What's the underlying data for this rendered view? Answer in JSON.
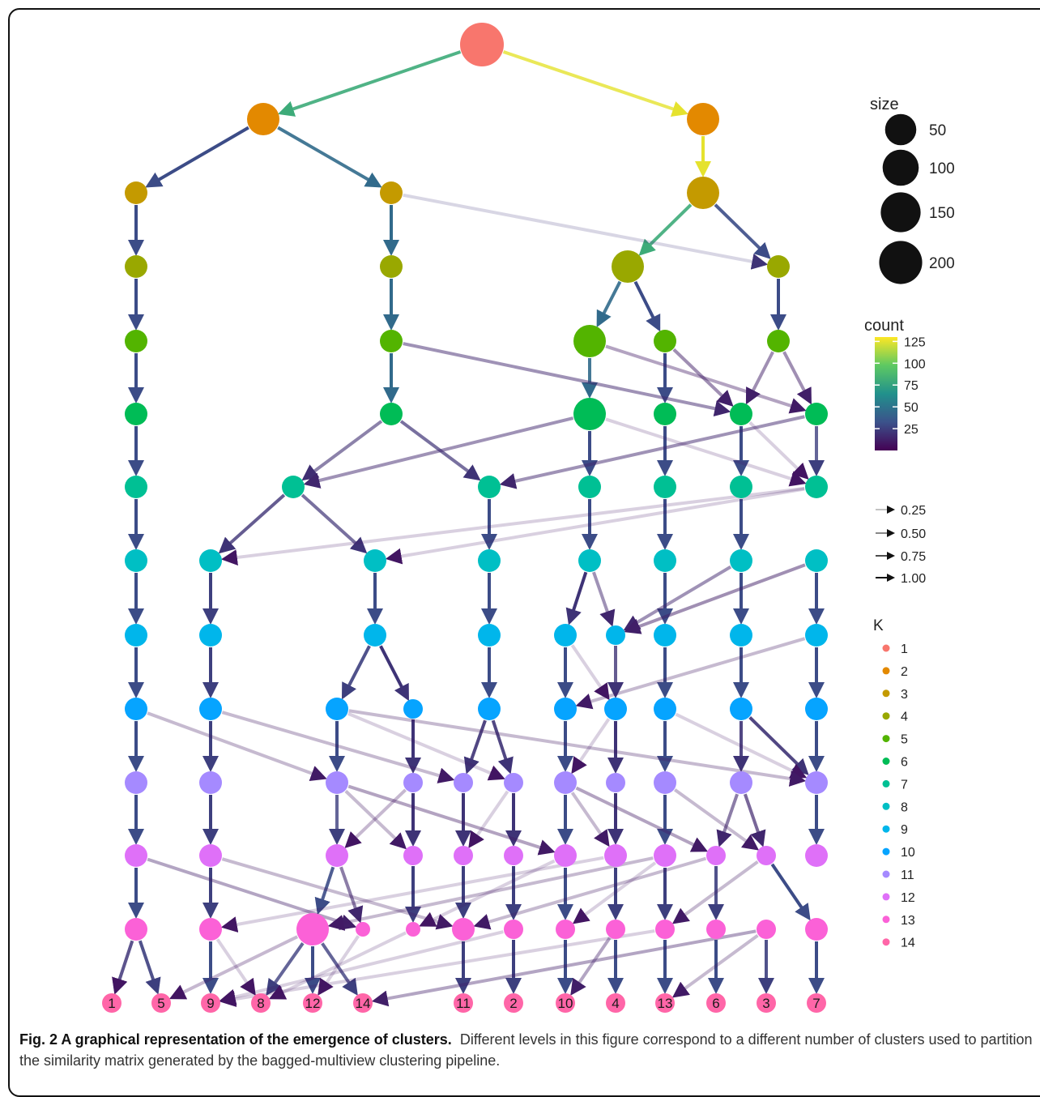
{
  "caption": {
    "bold": "Fig. 2 A graphical representation of the emergence of clusters.",
    "text": "Different levels in this figure correspond to a different number of clusters used to partition the similarity matrix generated by the bagged-multiview clustering pipeline."
  },
  "legend": {
    "size_title": "size",
    "size_items": [
      {
        "label": "50",
        "value": 50
      },
      {
        "label": "100",
        "value": 100
      },
      {
        "label": "150",
        "value": 150
      },
      {
        "label": "200",
        "value": 200
      }
    ],
    "count_title": "count",
    "count_ticks": [
      {
        "label": "125",
        "value": 125
      },
      {
        "label": "100",
        "value": 100
      },
      {
        "label": "75",
        "value": 75
      },
      {
        "label": "50",
        "value": 50
      },
      {
        "label": "25",
        "value": 25
      }
    ],
    "count_range": [
      0,
      130
    ],
    "arrow_items": [
      {
        "label": "0.25",
        "value": 0.25
      },
      {
        "label": "0.50",
        "value": 0.5
      },
      {
        "label": "0.75",
        "value": 0.75
      },
      {
        "label": "1.00",
        "value": 1.0
      }
    ],
    "k_title": "K",
    "k_items": [
      {
        "label": "1",
        "color": "#f8766d"
      },
      {
        "label": "2",
        "color": "#e38900"
      },
      {
        "label": "3",
        "color": "#c49a00"
      },
      {
        "label": "4",
        "color": "#99a800"
      },
      {
        "label": "5",
        "color": "#53b400"
      },
      {
        "label": "6",
        "color": "#00bc56"
      },
      {
        "label": "7",
        "color": "#00c094"
      },
      {
        "label": "8",
        "color": "#00bfc4"
      },
      {
        "label": "9",
        "color": "#00b6eb"
      },
      {
        "label": "10",
        "color": "#06a4ff"
      },
      {
        "label": "11",
        "color": "#a58aff"
      },
      {
        "label": "12",
        "color": "#df70f8"
      },
      {
        "label": "13",
        "color": "#fb61d7"
      },
      {
        "label": "14",
        "color": "#ff66a8"
      }
    ]
  },
  "leaf_labels": [
    "1",
    "5",
    "9",
    "8",
    "12",
    "14",
    "11",
    "2",
    "10",
    "4",
    "13",
    "6",
    "3",
    "7"
  ],
  "nodes": [
    [
      [
        595,
        55,
        "L"
      ]
    ],
    [
      [
        325,
        147,
        "m"
      ],
      [
        868,
        147,
        "m"
      ]
    ],
    [
      [
        168,
        238,
        "s"
      ],
      [
        483,
        238,
        "s"
      ],
      [
        868,
        238,
        "m"
      ]
    ],
    [
      [
        168,
        329,
        "s"
      ],
      [
        483,
        329,
        "s"
      ],
      [
        775,
        329,
        "m"
      ],
      [
        961,
        329,
        "s"
      ]
    ],
    [
      [
        168,
        421,
        "s"
      ],
      [
        483,
        421,
        "s"
      ],
      [
        728,
        421,
        "m"
      ],
      [
        821,
        421,
        "s"
      ],
      [
        961,
        421,
        "s"
      ]
    ],
    [
      [
        168,
        511,
        "s"
      ],
      [
        483,
        511,
        "s"
      ],
      [
        728,
        511,
        "m"
      ],
      [
        821,
        511,
        "s"
      ],
      [
        915,
        511,
        "s"
      ],
      [
        1008,
        511,
        "s"
      ]
    ],
    [
      [
        168,
        601,
        "s"
      ],
      [
        362,
        601,
        "s"
      ],
      [
        604,
        601,
        "s"
      ],
      [
        728,
        601,
        "s"
      ],
      [
        821,
        601,
        "s"
      ],
      [
        915,
        601,
        "s"
      ],
      [
        1008,
        601,
        "s"
      ]
    ],
    [
      [
        168,
        692,
        "s"
      ],
      [
        260,
        692,
        "s"
      ],
      [
        463,
        692,
        "s"
      ],
      [
        604,
        692,
        "s"
      ],
      [
        728,
        692,
        "s"
      ],
      [
        821,
        692,
        "s"
      ],
      [
        915,
        692,
        "s"
      ],
      [
        1008,
        692,
        "s"
      ]
    ],
    [
      [
        168,
        784,
        "s"
      ],
      [
        260,
        784,
        "s"
      ],
      [
        463,
        784,
        "s"
      ],
      [
        604,
        784,
        "s"
      ],
      [
        698,
        784,
        "s"
      ],
      [
        760,
        784,
        "xs"
      ],
      [
        821,
        784,
        "s"
      ],
      [
        915,
        784,
        "s"
      ],
      [
        1008,
        784,
        "s"
      ]
    ],
    [
      [
        168,
        875,
        "s"
      ],
      [
        260,
        875,
        "s"
      ],
      [
        416,
        875,
        "s"
      ],
      [
        510,
        875,
        "xs"
      ],
      [
        604,
        875,
        "s"
      ],
      [
        698,
        875,
        "s"
      ],
      [
        760,
        875,
        "s"
      ],
      [
        821,
        875,
        "s"
      ],
      [
        915,
        875,
        "s"
      ],
      [
        1008,
        875,
        "s"
      ]
    ],
    [
      [
        168,
        966,
        "s"
      ],
      [
        260,
        966,
        "s"
      ],
      [
        416,
        966,
        "s"
      ],
      [
        510,
        966,
        "xs"
      ],
      [
        572,
        966,
        "xs"
      ],
      [
        634,
        966,
        "xs"
      ],
      [
        698,
        966,
        "s"
      ],
      [
        760,
        966,
        "xs"
      ],
      [
        821,
        966,
        "s"
      ],
      [
        915,
        966,
        "s"
      ],
      [
        1008,
        966,
        "s"
      ]
    ],
    [
      [
        168,
        1056,
        "s"
      ],
      [
        260,
        1056,
        "s"
      ],
      [
        416,
        1056,
        "s"
      ],
      [
        510,
        1056,
        "xs"
      ],
      [
        572,
        1056,
        "xs"
      ],
      [
        634,
        1056,
        "xs"
      ],
      [
        698,
        1056,
        "s"
      ],
      [
        760,
        1056,
        "s"
      ],
      [
        821,
        1056,
        "s"
      ],
      [
        884,
        1056,
        "xs"
      ],
      [
        946,
        1056,
        "xs"
      ],
      [
        1008,
        1056,
        "s"
      ]
    ],
    [
      [
        168,
        1147,
        "s"
      ],
      [
        260,
        1147,
        "s"
      ],
      [
        386,
        1147,
        "m"
      ],
      [
        448,
        1147,
        "xxs"
      ],
      [
        510,
        1147,
        "xxs"
      ],
      [
        572,
        1147,
        "s"
      ],
      [
        634,
        1147,
        "xs"
      ],
      [
        698,
        1147,
        "xs"
      ],
      [
        760,
        1147,
        "xs"
      ],
      [
        821,
        1147,
        "xs"
      ],
      [
        884,
        1147,
        "xs"
      ],
      [
        946,
        1147,
        "xs"
      ],
      [
        1008,
        1147,
        "s"
      ]
    ],
    [
      [
        138,
        1238,
        "t"
      ],
      [
        199,
        1238,
        "t"
      ],
      [
        260,
        1238,
        "t"
      ],
      [
        322,
        1238,
        "t"
      ],
      [
        386,
        1238,
        "t"
      ],
      [
        448,
        1238,
        "t"
      ],
      [
        572,
        1238,
        "t"
      ],
      [
        634,
        1238,
        "t"
      ],
      [
        698,
        1238,
        "t"
      ],
      [
        760,
        1238,
        "t"
      ],
      [
        821,
        1238,
        "t"
      ],
      [
        884,
        1238,
        "t"
      ],
      [
        946,
        1238,
        "t"
      ],
      [
        1008,
        1238,
        "t"
      ]
    ]
  ],
  "edges": [
    [
      0,
      0,
      0,
      0.9,
      80
    ],
    [
      0,
      0,
      1,
      0.8,
      125
    ],
    [
      1,
      0,
      0,
      1,
      30
    ],
    [
      1,
      0,
      1,
      0.9,
      45
    ],
    [
      1,
      1,
      2,
      1,
      125
    ],
    [
      2,
      0,
      0,
      1,
      30
    ],
    [
      2,
      1,
      1,
      1,
      45
    ],
    [
      2,
      2,
      2,
      0.9,
      80
    ],
    [
      2,
      2,
      3,
      0.9,
      30
    ],
    [
      2,
      1,
      3,
      0.2,
      20
    ],
    [
      3,
      0,
      0,
      1,
      30
    ],
    [
      3,
      1,
      1,
      1,
      45
    ],
    [
      3,
      2,
      2,
      0.9,
      45
    ],
    [
      3,
      2,
      3,
      1,
      30
    ],
    [
      3,
      3,
      4,
      1,
      30
    ],
    [
      4,
      0,
      0,
      1,
      30
    ],
    [
      4,
      1,
      1,
      1,
      45
    ],
    [
      4,
      2,
      2,
      0.9,
      45
    ],
    [
      4,
      3,
      3,
      1,
      30
    ],
    [
      4,
      1,
      4,
      0.5,
      15
    ],
    [
      4,
      2,
      5,
      0.4,
      10
    ],
    [
      4,
      3,
      4,
      0.5,
      12
    ],
    [
      4,
      4,
      4,
      0.5,
      12
    ],
    [
      4,
      4,
      5,
      0.5,
      12
    ],
    [
      5,
      0,
      0,
      1,
      30
    ],
    [
      5,
      1,
      1,
      0.6,
      18
    ],
    [
      5,
      1,
      2,
      0.7,
      20
    ],
    [
      5,
      2,
      3,
      1,
      30
    ],
    [
      5,
      3,
      4,
      1,
      30
    ],
    [
      5,
      4,
      5,
      1,
      30
    ],
    [
      5,
      5,
      6,
      0.8,
      25
    ],
    [
      5,
      2,
      1,
      0.5,
      15
    ],
    [
      5,
      5,
      2,
      0.5,
      15
    ],
    [
      5,
      2,
      6,
      0.2,
      8
    ],
    [
      5,
      4,
      6,
      0.2,
      8
    ],
    [
      6,
      0,
      0,
      1,
      30
    ],
    [
      6,
      1,
      1,
      0.8,
      20
    ],
    [
      6,
      1,
      2,
      0.7,
      20
    ],
    [
      6,
      2,
      3,
      1,
      30
    ],
    [
      6,
      3,
      4,
      1,
      30
    ],
    [
      6,
      4,
      5,
      1,
      30
    ],
    [
      6,
      5,
      6,
      1,
      30
    ],
    [
      6,
      7,
      7,
      1,
      30
    ],
    [
      6,
      6,
      2,
      0.2,
      8
    ],
    [
      6,
      6,
      1,
      0.2,
      8
    ],
    [
      7,
      0,
      0,
      1,
      30
    ],
    [
      7,
      1,
      1,
      1,
      25
    ],
    [
      7,
      2,
      2,
      1,
      30
    ],
    [
      7,
      3,
      3,
      1,
      30
    ],
    [
      7,
      4,
      4,
      1,
      20
    ],
    [
      7,
      4,
      5,
      0.5,
      15
    ],
    [
      7,
      5,
      6,
      1,
      30
    ],
    [
      7,
      6,
      7,
      1,
      30
    ],
    [
      7,
      7,
      8,
      1,
      30
    ],
    [
      7,
      6,
      5,
      0.5,
      15
    ],
    [
      7,
      7,
      5,
      0.5,
      12
    ],
    [
      8,
      0,
      0,
      1,
      30
    ],
    [
      8,
      1,
      1,
      1,
      25
    ],
    [
      8,
      2,
      2,
      0.9,
      25
    ],
    [
      8,
      2,
      3,
      1,
      20
    ],
    [
      8,
      3,
      4,
      1,
      30
    ],
    [
      8,
      4,
      5,
      1,
      30
    ],
    [
      8,
      5,
      6,
      0.8,
      20
    ],
    [
      8,
      6,
      7,
      1,
      30
    ],
    [
      8,
      7,
      8,
      1,
      30
    ],
    [
      8,
      8,
      9,
      1,
      30
    ],
    [
      8,
      4,
      6,
      0.2,
      8
    ],
    [
      8,
      8,
      5,
      0.3,
      10
    ],
    [
      9,
      0,
      0,
      1,
      30
    ],
    [
      9,
      1,
      1,
      1,
      25
    ],
    [
      9,
      2,
      2,
      1,
      30
    ],
    [
      9,
      3,
      3,
      1,
      20
    ],
    [
      9,
      4,
      4,
      0.9,
      20
    ],
    [
      9,
      4,
      5,
      0.9,
      20
    ],
    [
      9,
      5,
      6,
      1,
      30
    ],
    [
      9,
      6,
      7,
      1,
      20
    ],
    [
      9,
      7,
      8,
      1,
      30
    ],
    [
      9,
      8,
      9,
      0.9,
      20
    ],
    [
      9,
      8,
      10,
      0.9,
      20
    ],
    [
      9,
      9,
      10,
      1,
      30
    ],
    [
      9,
      0,
      2,
      0.3,
      10
    ],
    [
      9,
      1,
      4,
      0.3,
      10
    ],
    [
      9,
      2,
      5,
      0.2,
      8
    ],
    [
      9,
      7,
      10,
      0.2,
      8
    ],
    [
      9,
      2,
      10,
      0.3,
      10
    ],
    [
      9,
      6,
      6,
      0.2,
      8
    ],
    [
      10,
      0,
      0,
      1,
      30
    ],
    [
      10,
      1,
      1,
      1,
      25
    ],
    [
      10,
      2,
      2,
      0.8,
      25
    ],
    [
      10,
      3,
      3,
      1,
      20
    ],
    [
      10,
      4,
      4,
      1,
      20
    ],
    [
      10,
      5,
      5,
      1,
      20
    ],
    [
      10,
      6,
      6,
      1,
      30
    ],
    [
      10,
      7,
      7,
      1,
      20
    ],
    [
      10,
      8,
      8,
      1,
      30
    ],
    [
      10,
      9,
      9,
      0.6,
      15
    ],
    [
      10,
      9,
      10,
      0.7,
      15
    ],
    [
      10,
      10,
      11,
      1,
      30
    ],
    [
      10,
      2,
      6,
      0.4,
      10
    ],
    [
      10,
      2,
      3,
      0.3,
      10
    ],
    [
      10,
      6,
      7,
      0.3,
      10
    ],
    [
      10,
      6,
      9,
      0.4,
      10
    ],
    [
      10,
      8,
      10,
      0.3,
      10
    ],
    [
      10,
      3,
      2,
      0.3,
      8
    ],
    [
      10,
      5,
      4,
      0.2,
      8
    ],
    [
      11,
      0,
      0,
      1,
      30
    ],
    [
      11,
      1,
      1,
      1,
      25
    ],
    [
      11,
      2,
      2,
      0.9,
      30
    ],
    [
      11,
      2,
      3,
      0.6,
      15
    ],
    [
      11,
      3,
      4,
      1,
      25
    ],
    [
      11,
      4,
      5,
      1,
      25
    ],
    [
      11,
      5,
      6,
      1,
      25
    ],
    [
      11,
      6,
      7,
      1,
      30
    ],
    [
      11,
      7,
      8,
      1,
      25
    ],
    [
      11,
      8,
      9,
      1,
      25
    ],
    [
      11,
      9,
      10,
      0.9,
      25
    ],
    [
      11,
      10,
      12,
      1,
      30
    ],
    [
      11,
      0,
      3,
      0.4,
      12
    ],
    [
      11,
      1,
      5,
      0.3,
      10
    ],
    [
      11,
      8,
      2,
      0.3,
      10
    ],
    [
      11,
      7,
      1,
      0.2,
      8
    ],
    [
      11,
      6,
      4,
      0.2,
      8
    ],
    [
      11,
      9,
      5,
      0.3,
      10
    ],
    [
      11,
      8,
      7,
      0.2,
      8
    ],
    [
      11,
      10,
      9,
      0.3,
      10
    ],
    [
      12,
      0,
      0,
      0.8,
      25
    ],
    [
      12,
      0,
      1,
      0.9,
      25
    ],
    [
      12,
      1,
      2,
      1,
      30
    ],
    [
      12,
      1,
      3,
      0.2,
      8
    ],
    [
      12,
      2,
      3,
      0.8,
      25
    ],
    [
      12,
      2,
      4,
      1,
      30
    ],
    [
      12,
      2,
      5,
      0.8,
      25
    ],
    [
      12,
      3,
      4,
      0.2,
      8
    ],
    [
      12,
      5,
      6,
      1,
      25
    ],
    [
      12,
      6,
      7,
      1,
      25
    ],
    [
      12,
      7,
      8,
      1,
      30
    ],
    [
      12,
      8,
      9,
      1,
      30
    ],
    [
      12,
      9,
      10,
      1,
      30
    ],
    [
      12,
      10,
      11,
      1,
      30
    ],
    [
      12,
      11,
      12,
      0.9,
      25
    ],
    [
      12,
      12,
      13,
      1,
      30
    ],
    [
      12,
      8,
      8,
      0.4,
      12
    ],
    [
      12,
      11,
      5,
      0.4,
      12
    ],
    [
      12,
      0,
      0,
      0.2,
      8
    ],
    [
      12,
      2,
      1,
      0.3,
      8
    ],
    [
      12,
      4,
      3,
      0.2,
      8
    ],
    [
      12,
      11,
      10,
      0.3,
      10
    ],
    [
      12,
      6,
      2,
      0.2,
      8
    ],
    [
      12,
      9,
      2,
      0.2,
      8
    ]
  ]
}
